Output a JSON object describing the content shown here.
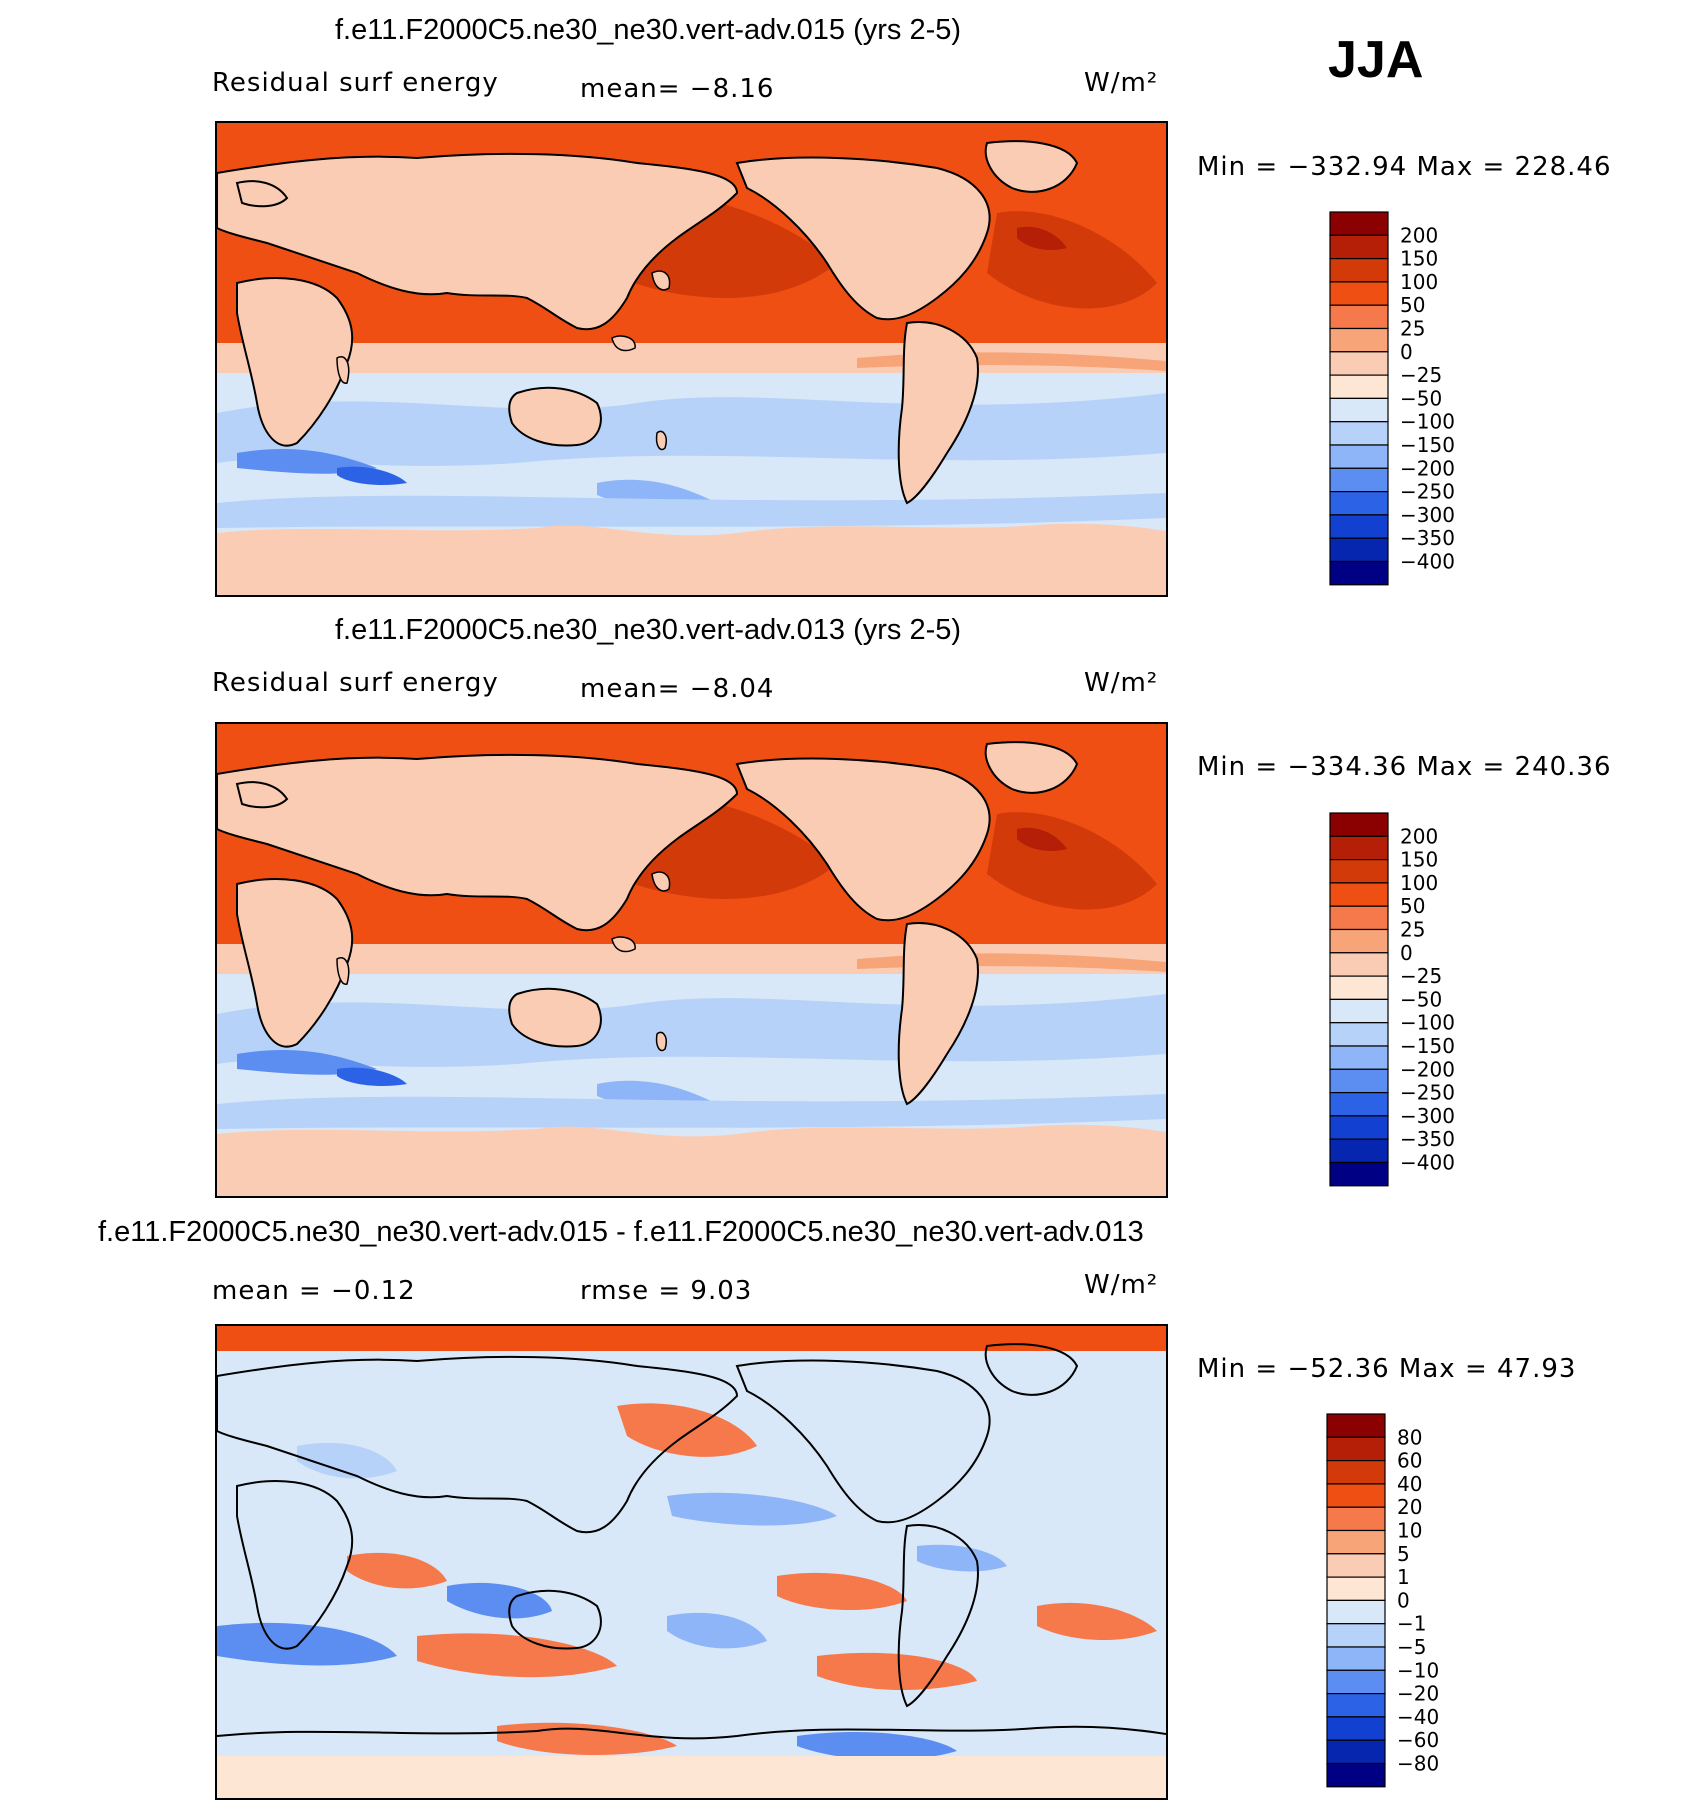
{
  "season": "JJA",
  "units": "W/m²",
  "panels": [
    {
      "id": "p1",
      "title": "f.e11.F2000C5.ne30_ne30.vert-adv.015 (yrs 2-5)",
      "left_label": "Residual surf energy",
      "stat_text": "mean=   −8.16",
      "minmax": "Min = −332.94 Max = 228.46"
    },
    {
      "id": "p2",
      "title": "f.e11.F2000C5.ne30_ne30.vert-adv.013 (yrs 2-5)",
      "left_label": "Residual surf energy",
      "stat_text": "mean=   −8.04",
      "minmax": "Min = −334.36 Max = 240.36"
    },
    {
      "id": "p3",
      "title": "f.e11.F2000C5.ne30_ne30.vert-adv.015 - f.e11.F2000C5.ne30_ne30.vert-adv.013",
      "left_label": "mean =   −0.12",
      "stat_text": "rmse =    9.03",
      "minmax": "Min = −52.36 Max =  47.93"
    }
  ],
  "chart_data": [
    {
      "type": "heatmap",
      "title": "f.e11.F2000C5.ne30_ne30.vert-adv.015 (yrs 2-5)",
      "variable": "Residual surf energy",
      "units": "W/m²",
      "mean": -8.16,
      "min": -332.94,
      "max": 228.46,
      "colorbar_levels": [
        "200",
        "150",
        "100",
        "50",
        "25",
        "0",
        "−25",
        "−50",
        "−100",
        "−150",
        "−200",
        "−250",
        "−300",
        "−350",
        "−400"
      ],
      "colorbar_colors": [
        "#8b0000",
        "#b51f07",
        "#d23a09",
        "#ef4f12",
        "#f6794b",
        "#f7a479",
        "#fbccb4",
        "#fde6d3",
        "#d8e8f8",
        "#b7d2f9",
        "#8db5f7",
        "#5c8ef2",
        "#2c62e6",
        "#1240d0",
        "#0626b0",
        "#000085"
      ]
    },
    {
      "type": "heatmap",
      "title": "f.e11.F2000C5.ne30_ne30.vert-adv.013 (yrs 2-5)",
      "variable": "Residual surf energy",
      "units": "W/m²",
      "mean": -8.04,
      "min": -334.36,
      "max": 240.36,
      "colorbar_levels": [
        "200",
        "150",
        "100",
        "50",
        "25",
        "0",
        "−25",
        "−50",
        "−100",
        "−150",
        "−200",
        "−250",
        "−300",
        "−350",
        "−400"
      ],
      "colorbar_colors": [
        "#8b0000",
        "#b51f07",
        "#d23a09",
        "#ef4f12",
        "#f6794b",
        "#f7a479",
        "#fbccb4",
        "#fde6d3",
        "#d8e8f8",
        "#b7d2f9",
        "#8db5f7",
        "#5c8ef2",
        "#2c62e6",
        "#1240d0",
        "#0626b0",
        "#000085"
      ]
    },
    {
      "type": "heatmap",
      "title": "f.e11.F2000C5.ne30_ne30.vert-adv.015 - f.e11.F2000C5.ne30_ne30.vert-adv.013",
      "units": "W/m²",
      "mean": -0.12,
      "rmse": 9.03,
      "min": -52.36,
      "max": 47.93,
      "colorbar_levels": [
        "80",
        "60",
        "40",
        "20",
        "10",
        "5",
        "1",
        "0",
        "−1",
        "−5",
        "−10",
        "−20",
        "−40",
        "−60",
        "−80"
      ],
      "colorbar_colors": [
        "#8b0000",
        "#b51f07",
        "#d23a09",
        "#ef4f12",
        "#f6794b",
        "#f7a479",
        "#fbccb4",
        "#fde6d3",
        "#d8e8f8",
        "#b7d2f9",
        "#8db5f7",
        "#5c8ef2",
        "#2c62e6",
        "#1240d0",
        "#0626b0",
        "#000085"
      ]
    }
  ]
}
